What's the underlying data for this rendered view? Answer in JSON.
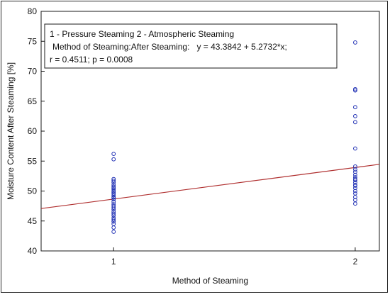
{
  "chart_data": {
    "type": "scatter",
    "title": "",
    "xlabel": "Method of Steaming",
    "ylabel": "Moisture Content After Steaming [%]",
    "xlim": [
      0.7,
      2.1
    ],
    "ylim": [
      40,
      80
    ],
    "xticks": [
      1,
      2
    ],
    "yticks": [
      40,
      45,
      50,
      55,
      60,
      65,
      70,
      75,
      80
    ],
    "grid": false,
    "legend_position": "top-left",
    "legend": {
      "line1": "1 - Pressure Steaming 2 - Atmospheric Steaming",
      "line2": "Method of Steaming:After Steaming:   y = 43.3842 + 5.2732*x;",
      "line3": "r = 0.4511; p = 0.0008"
    },
    "regression": {
      "intercept": 43.3842,
      "slope": 5.2732
    },
    "series": [
      {
        "x": [
          1,
          1,
          1,
          1,
          1,
          1,
          1,
          1,
          1,
          1,
          1,
          1,
          1,
          1,
          1,
          1,
          1,
          1,
          1,
          1,
          1,
          1,
          1,
          1,
          1,
          1,
          1,
          1,
          1,
          1
        ],
        "values": [
          56.2,
          55.3,
          52.0,
          51.7,
          51.4,
          51.0,
          50.7,
          50.3,
          50.0,
          49.6,
          49.3,
          49.0,
          48.6,
          48.2,
          47.8,
          47.5,
          47.2,
          46.9,
          46.5,
          46.2,
          45.9,
          45.5,
          45.2,
          44.9,
          44.5,
          43.9,
          43.2,
          50.5,
          49.8,
          48.9
        ]
      },
      {
        "x": [
          2,
          2,
          2,
          2,
          2,
          2,
          2,
          2,
          2,
          2,
          2,
          2,
          2,
          2,
          2,
          2,
          2,
          2,
          2,
          2,
          2,
          2,
          2
        ],
        "values": [
          74.8,
          67.0,
          66.8,
          64.0,
          62.5,
          61.5,
          57.1,
          54.1,
          53.6,
          53.2,
          52.7,
          52.3,
          51.8,
          51.4,
          50.9,
          50.5,
          50.0,
          49.6,
          49.0,
          48.5,
          47.9,
          52.0,
          51.0
        ]
      }
    ],
    "colors": {
      "points": "#1f2fb4",
      "line": "#b03030",
      "axes": "#1a1a1a"
    }
  }
}
